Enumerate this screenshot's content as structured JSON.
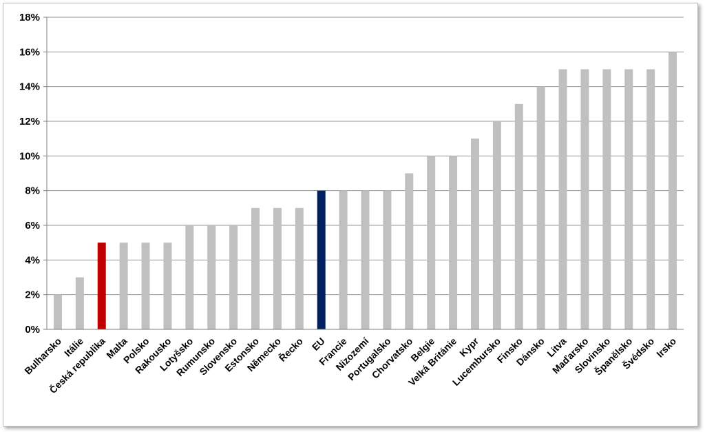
{
  "colors": {
    "bar_default": "#c0c0c0",
    "bar_highlight_czech": "#c00000",
    "bar_highlight_eu": "#002060",
    "grid": "#969696",
    "axis": "#7f7f7f"
  },
  "chart_data": {
    "type": "bar",
    "title": "",
    "xlabel": "",
    "ylabel": "",
    "ylim": [
      0,
      18
    ],
    "yticks": [
      "0%",
      "2%",
      "4%",
      "6%",
      "8%",
      "10%",
      "12%",
      "14%",
      "16%",
      "18%"
    ],
    "grid": true,
    "legend": "none",
    "categories": [
      "Bulharsko",
      "Itálie",
      "Česká republika",
      "Malta",
      "Polsko",
      "Rakousko",
      "Lotyšsko",
      "Rumunsko",
      "Slovensko",
      "Estonsko",
      "Německo",
      "Řecko",
      "EU",
      "Francie",
      "Nizozemí",
      "Portugalsko",
      "Chorvatsko",
      "Belgie",
      "Velká Británie",
      "Kypr",
      "Lucembursko",
      "Finsko",
      "Dánsko",
      "Litva",
      "Maďarsko",
      "Slovinsko",
      "Španělsko",
      "Švédsko",
      "Irsko"
    ],
    "values": [
      2,
      3,
      5,
      5,
      5,
      5,
      6,
      6,
      6,
      7,
      7,
      7,
      8,
      8,
      8,
      8,
      9,
      10,
      10,
      11,
      12,
      13,
      14,
      15,
      15,
      15,
      15,
      15,
      16
    ],
    "highlights": {
      "Česká republika": "#c00000",
      "EU": "#002060"
    }
  }
}
